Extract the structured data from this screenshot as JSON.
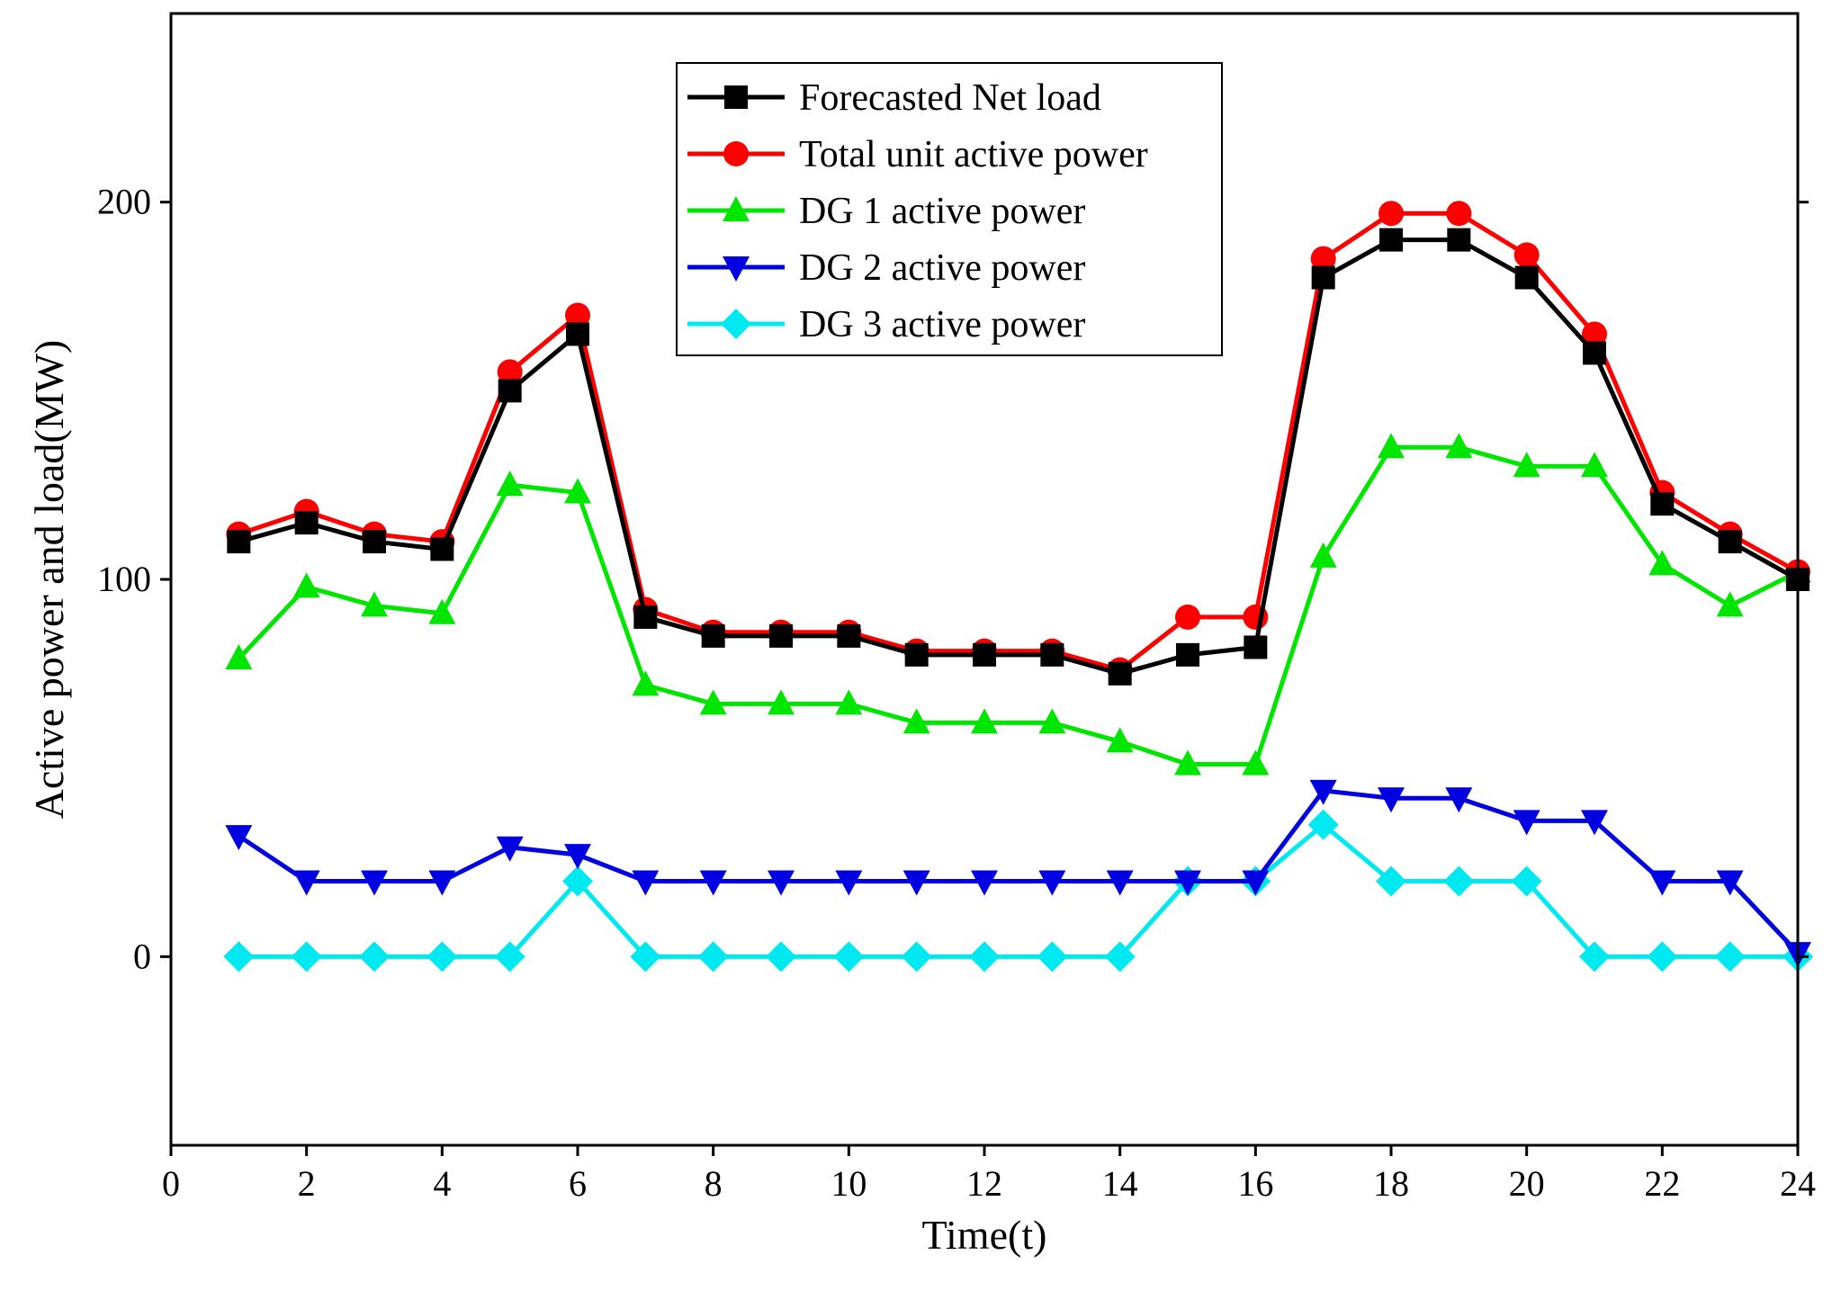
{
  "chart_data": {
    "type": "line",
    "xlabel": "Time(t)",
    "ylabel": "Active power and load(MW)",
    "xlim": [
      0,
      24
    ],
    "ylim": [
      -50,
      250
    ],
    "xticks": [
      0,
      2,
      4,
      6,
      8,
      10,
      12,
      14,
      16,
      18,
      20,
      22,
      24
    ],
    "yticks": [
      0,
      100,
      200
    ],
    "grid": false,
    "legend_position": "top-center",
    "x": [
      1,
      2,
      3,
      4,
      5,
      6,
      7,
      8,
      9,
      10,
      11,
      12,
      13,
      14,
      15,
      16,
      17,
      18,
      19,
      20,
      21,
      22,
      23,
      24
    ],
    "series": [
      {
        "name": "Forecasted Net load",
        "color": "#000000",
        "marker": "square",
        "values": [
          110,
          115,
          110,
          108,
          150,
          165,
          90,
          85,
          85,
          85,
          80,
          80,
          80,
          75,
          80,
          82,
          180,
          190,
          190,
          180,
          160,
          120,
          110,
          100
        ]
      },
      {
        "name": "Total unit active power",
        "color": "#ff0000",
        "marker": "circle",
        "values": [
          112,
          118,
          112,
          110,
          155,
          170,
          92,
          86,
          86,
          86,
          81,
          81,
          81,
          76,
          90,
          90,
          185,
          197,
          197,
          186,
          165,
          123,
          112,
          102
        ]
      },
      {
        "name": "DG 1 active power",
        "color": "#00e600",
        "marker": "triangle-up",
        "values": [
          79,
          98,
          93,
          91,
          125,
          123,
          72,
          67,
          67,
          67,
          62,
          62,
          62,
          57,
          51,
          51,
          106,
          135,
          135,
          130,
          130,
          104,
          93,
          102
        ]
      },
      {
        "name": "DG 2 active power",
        "color": "#0000e0",
        "marker": "triangle-down",
        "values": [
          32,
          20,
          20,
          20,
          29,
          27,
          20,
          20,
          20,
          20,
          20,
          20,
          20,
          20,
          20,
          20,
          44,
          42,
          42,
          36,
          36,
          20,
          20,
          1
        ]
      },
      {
        "name": "DG 3 active power",
        "color": "#00e8f0",
        "marker": "diamond",
        "values": [
          0,
          0,
          0,
          0,
          0,
          20,
          0,
          0,
          0,
          0,
          0,
          0,
          0,
          0,
          20,
          20,
          35,
          20,
          20,
          20,
          0,
          0,
          0,
          0
        ]
      }
    ]
  }
}
